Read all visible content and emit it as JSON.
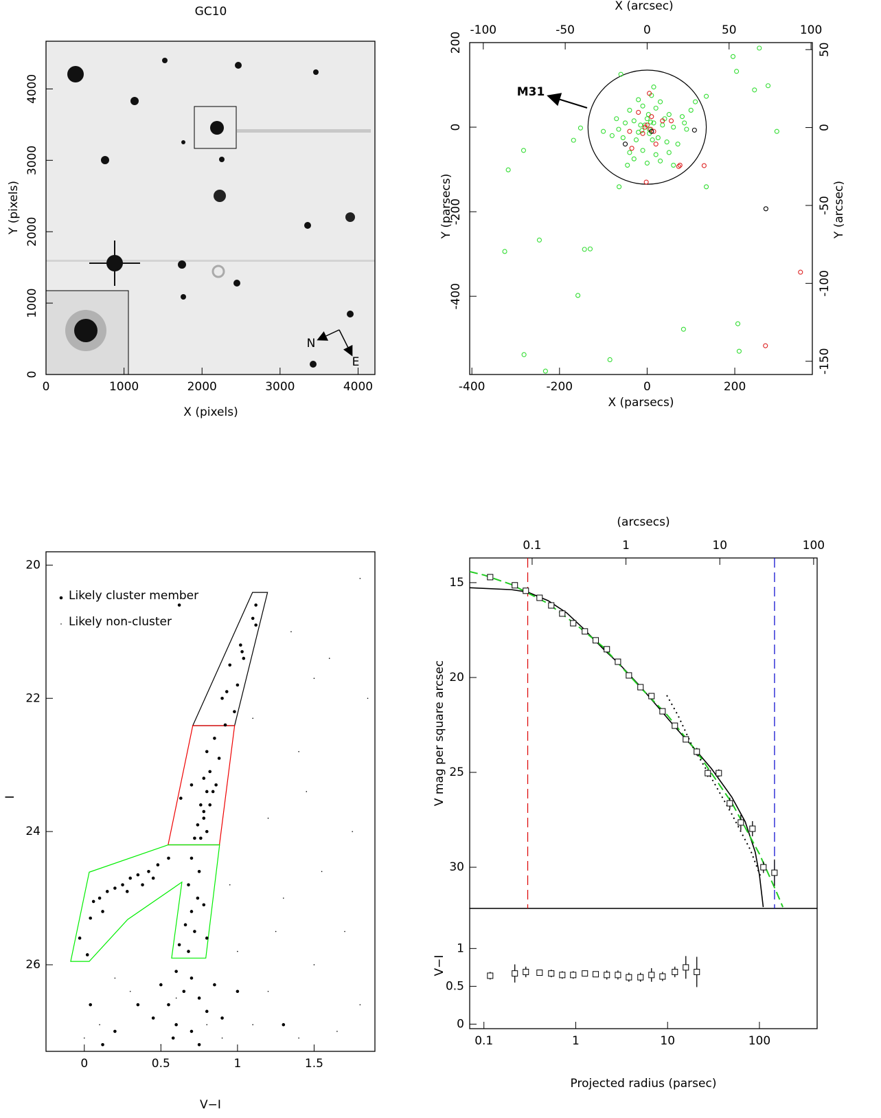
{
  "chart_data": [
    {
      "type": "image",
      "title": "GC10",
      "x_label": "X (pixels)",
      "y_label": "Y (pixels)",
      "xlim": [
        0,
        4216
      ],
      "ylim": [
        0,
        4668
      ],
      "xticks": [
        0,
        1000,
        2000,
        3000,
        4000
      ],
      "yticks": [
        0,
        1000,
        2000,
        3000,
        4000
      ],
      "compass": [
        "N",
        "E"
      ]
    },
    {
      "type": "scatter",
      "x_label": "X (parsecs)",
      "y_label": "Y (parsecs)",
      "x2_label": "X (arcsec)",
      "y2_label": "Y (arcsec)",
      "xlim": [
        -405,
        377
      ],
      "ylim": [
        -585,
        200
      ],
      "xticks": [
        -400,
        -200,
        0,
        200
      ],
      "yticks": [
        -400,
        -200,
        0,
        200
      ],
      "x2lim": [
        -108.3,
        100.8
      ],
      "x2ticks": [
        -100,
        -50,
        0,
        50,
        100
      ],
      "y2lim": [
        -158.5,
        54.5
      ],
      "y2ticks": [
        -150,
        -100,
        -50,
        0,
        50
      ],
      "annotation": "M31",
      "circle_radius": 135,
      "series": [
        {
          "color": "#33dd33",
          "x": [
            196,
            204,
            256,
            245,
            276,
            296,
            135,
            135,
            -64,
            -168,
            -152,
            -282,
            -317,
            -246,
            -325,
            -143,
            -130,
            -158,
            83,
            207,
            210,
            -85,
            -281,
            -232,
            -60,
            -20,
            10,
            30,
            -40,
            -10,
            20,
            50,
            80,
            100,
            -70,
            -50,
            -30,
            -15,
            0,
            15,
            35,
            60,
            90,
            -80,
            -55,
            -25,
            5,
            25,
            45,
            70,
            -40,
            -10,
            20,
            50,
            -45,
            0,
            30,
            -5,
            5,
            8,
            -12,
            3,
            -20,
            12,
            40,
            -65,
            85,
            110,
            -100,
            60,
            -30,
            15
          ],
          "y": [
            167,
            132,
            187,
            88,
            98,
            -10,
            73,
            -141,
            -141,
            -31,
            -2,
            -55,
            -101,
            -267,
            -294,
            -289,
            -288,
            -398,
            -478,
            -465,
            -530,
            -550,
            -538,
            -577,
            125,
            65,
            75,
            60,
            40,
            50,
            45,
            30,
            25,
            40,
            20,
            10,
            15,
            5,
            20,
            10,
            5,
            0,
            -5,
            -20,
            -25,
            -30,
            -15,
            -25,
            -35,
            -40,
            -60,
            -55,
            -65,
            -60,
            -90,
            -85,
            -80,
            5,
            -5,
            12,
            -8,
            30,
            -12,
            -30,
            20,
            -5,
            10,
            60,
            -10,
            -90,
            -75,
            95
          ]
        },
        {
          "color": "#dd2222",
          "x": [
            350,
            270,
            130,
            72,
            -2,
            5,
            -20,
            10,
            -5,
            8,
            0,
            15,
            -10,
            35,
            55,
            -40,
            20,
            -35,
            75
          ],
          "y": [
            -343,
            -517,
            -91,
            -93,
            -130,
            80,
            35,
            25,
            0,
            -5,
            5,
            -10,
            -15,
            15,
            15,
            -10,
            -40,
            -50,
            -90
          ]
        },
        {
          "color": "#000000",
          "x": [
            108,
            271,
            -50,
            10
          ],
          "y": [
            -7,
            -193,
            -40,
            -10
          ]
        }
      ]
    },
    {
      "type": "scatter",
      "x_label": "V−I",
      "y_label": "I",
      "xlim": [
        -0.25,
        1.897
      ],
      "ylim": [
        19.8,
        27.3
      ],
      "invert_y": true,
      "xticks": [
        0,
        0.5,
        1,
        1.5
      ],
      "yticks": [
        20,
        22,
        24,
        26
      ],
      "series": [
        {
          "name": "Likely cluster member",
          "color": "#000000",
          "marker_size": 2.3,
          "x": [
            1.12,
            1.1,
            1.12,
            1.02,
            1.03,
            1.04,
            0.95,
            1.0,
            0.93,
            0.98,
            0.9,
            0.92,
            0.85,
            0.8,
            0.88,
            0.82,
            0.78,
            0.86,
            0.8,
            0.76,
            0.82,
            0.78,
            0.74,
            0.8,
            0.72,
            0.76,
            0.7,
            0.63,
            0.78,
            0.84,
            0.55,
            0.48,
            0.42,
            0.35,
            0.3,
            0.25,
            0.2,
            0.15,
            0.1,
            0.06,
            0.12,
            0.04,
            -0.03,
            0.02,
            0.45,
            0.38,
            0.28,
            0.7,
            0.75,
            0.68,
            0.74,
            0.7,
            0.66,
            0.72,
            0.62,
            0.68,
            0.78,
            0.8,
            0.6,
            0.7,
            0.5,
            0.65,
            0.75,
            0.55,
            0.8,
            0.45,
            0.6,
            0.7,
            0.85,
            0.35,
            0.9,
            0.58,
            0.75,
            1.3,
            0.04,
            0.2,
            1.0,
            0.12,
            0.62
          ],
          "y": [
            20.6,
            20.8,
            20.9,
            21.2,
            21.3,
            21.4,
            21.5,
            21.8,
            21.9,
            22.2,
            22.0,
            22.4,
            22.6,
            22.8,
            22.9,
            23.1,
            23.2,
            23.3,
            23.4,
            23.6,
            23.6,
            23.8,
            23.9,
            24.0,
            24.1,
            24.1,
            23.3,
            23.5,
            23.7,
            23.4,
            24.4,
            24.5,
            24.6,
            24.65,
            24.7,
            24.8,
            24.85,
            24.9,
            25.0,
            25.05,
            25.2,
            25.3,
            25.6,
            25.85,
            24.7,
            24.8,
            24.9,
            24.4,
            24.6,
            24.8,
            25.0,
            25.2,
            25.4,
            25.5,
            25.7,
            25.8,
            25.1,
            25.6,
            26.1,
            26.2,
            26.3,
            26.4,
            26.5,
            26.6,
            26.7,
            26.8,
            26.9,
            27.0,
            26.3,
            26.6,
            26.8,
            27.1,
            27.2,
            26.9,
            26.6,
            27.0,
            26.4,
            27.2,
            20.6
          ]
        },
        {
          "name": "Likely non-cluster",
          "color": "#000000",
          "marker_size": 0.8,
          "x": [
            1.6,
            1.8,
            1.5,
            1.85,
            1.4,
            1.45,
            1.2,
            1.75,
            1.55,
            1.3,
            1.7,
            1.0,
            1.5,
            1.2,
            1.8,
            1.1,
            0.9,
            0.3,
            0.1,
            1.4,
            1.65,
            0.5,
            0.2,
            1.25,
            0.95,
            1.1,
            1.35,
            0.0,
            0.6,
            0.8
          ],
          "y": [
            21.4,
            20.2,
            21.7,
            22.0,
            22.8,
            23.4,
            23.8,
            24.0,
            24.6,
            25.0,
            25.5,
            25.8,
            26.0,
            26.4,
            26.6,
            26.9,
            27.1,
            26.4,
            26.9,
            27.1,
            27.0,
            27.2,
            26.2,
            25.5,
            24.8,
            22.3,
            21.0,
            27.1,
            26.5,
            26.9
          ]
        }
      ],
      "regions": [
        {
          "color": "#000000",
          "x": [
            1.098,
            1.196,
            0.981,
            0.708
          ],
          "y": [
            20.41,
            20.41,
            22.41,
            22.41
          ]
        },
        {
          "color": "#ee0000",
          "x": [
            0.708,
            0.981,
            0.882,
            0.547
          ],
          "y": [
            22.41,
            22.41,
            24.2,
            24.2
          ]
        },
        {
          "color": "#00ee00",
          "x": [
            0.547,
            0.032,
            -0.089,
            0.032,
            0.283,
            0.637,
            0.57,
            0.793,
            0.883
          ],
          "y": [
            24.2,
            24.61,
            25.95,
            25.95,
            25.32,
            24.76,
            25.9,
            25.9,
            24.2
          ]
        }
      ]
    },
    {
      "type": "profile",
      "x_label": "Projected radius (parsec)",
      "x2_label": "(arcsecs)",
      "y_label": "V mag per square arcsec",
      "log_x": true,
      "xlim": [
        0.07,
        425
      ],
      "xticks": [
        0.1,
        1,
        10,
        100
      ],
      "x2lim": [
        0.0216,
        109
      ],
      "x2ticks": [
        0.1,
        1,
        10,
        100
      ],
      "ylim": [
        13.7,
        32.17
      ],
      "invert_y": true,
      "yticks": [
        15,
        20,
        25,
        30
      ],
      "color": "#000000",
      "x": [
        0.117,
        0.217,
        0.286,
        0.404,
        0.541,
        0.713,
        0.938,
        1.257,
        1.65,
        2.18,
        2.88,
        3.79,
        5.07,
        6.68,
        8.81,
        12.0,
        15.8,
        20.8,
        27.4,
        36.1,
        47.6,
        62.7,
        84.0,
        110.6,
        145.8
      ],
      "values": [
        14.71,
        15.14,
        15.43,
        15.8,
        16.2,
        16.63,
        17.14,
        17.57,
        18.04,
        18.51,
        19.17,
        19.89,
        20.51,
        20.98,
        21.78,
        22.54,
        23.26,
        23.91,
        25.04,
        25.04,
        26.63,
        27.64,
        27.97,
        30.0,
        30.29
      ],
      "errors": [
        0.1,
        0.1,
        0.1,
        0.1,
        0.1,
        0.1,
        0.1,
        0.1,
        0.1,
        0.1,
        0.1,
        0.1,
        0.1,
        0.1,
        0.1,
        0.1,
        0.15,
        0.2,
        0.2,
        0.2,
        0.3,
        0.4,
        0.4,
        0.3,
        0.7
      ],
      "curves": [
        {
          "color": "#000000",
          "style": "solid",
          "x": [
            0.07,
            0.2,
            0.3,
            0.5,
            0.8,
            1.2,
            2,
            3,
            5,
            8,
            12,
            20,
            30,
            50,
            70,
            90,
            100,
            110
          ],
          "values": [
            15.27,
            15.37,
            15.5,
            15.95,
            16.6,
            17.4,
            18.5,
            19.3,
            20.45,
            21.6,
            22.6,
            23.8,
            24.8,
            26.3,
            27.6,
            29.2,
            30.4,
            32.1
          ]
        },
        {
          "color": "#22cc22",
          "style": "dashed",
          "x": [
            0.07,
            0.1,
            0.2,
            0.5,
            1,
            2,
            5,
            10,
            20,
            50,
            100,
            150,
            180
          ],
          "values": [
            14.42,
            14.6,
            15.1,
            16.1,
            17.2,
            18.4,
            20.5,
            22.0,
            23.8,
            26.6,
            29.3,
            31.2,
            32.1
          ]
        },
        {
          "color": "#000000",
          "style": "dotted",
          "x": [
            9.8,
            13,
            18.5,
            30,
            50,
            80,
            105
          ],
          "values": [
            20.94,
            22.0,
            23.6,
            25.3,
            27.2,
            29.1,
            30.6
          ]
        }
      ],
      "vlines": [
        {
          "color": "#dd0000",
          "x": 0.3
        },
        {
          "color": "#0000cc",
          "x": 146
        }
      ],
      "lower": {
        "y_label": "V−I",
        "ylim": [
          -0.06,
          1.53
        ],
        "yticks": [
          0,
          0.5,
          1
        ],
        "x": [
          0.117,
          0.217,
          0.286,
          0.404,
          0.541,
          0.713,
          0.938,
          1.257,
          1.65,
          2.18,
          2.88,
          3.79,
          5.07,
          6.68,
          8.81,
          12.0,
          15.8,
          20.8
        ],
        "values": [
          0.64,
          0.67,
          0.69,
          0.68,
          0.67,
          0.65,
          0.65,
          0.67,
          0.66,
          0.65,
          0.65,
          0.62,
          0.62,
          0.65,
          0.63,
          0.69,
          0.75,
          0.69
        ],
        "errors": [
          0.05,
          0.12,
          0.07,
          0.04,
          0.05,
          0.05,
          0.05,
          0.04,
          0.03,
          0.06,
          0.06,
          0.06,
          0.06,
          0.09,
          0.06,
          0.07,
          0.15,
          0.2
        ]
      }
    }
  ]
}
